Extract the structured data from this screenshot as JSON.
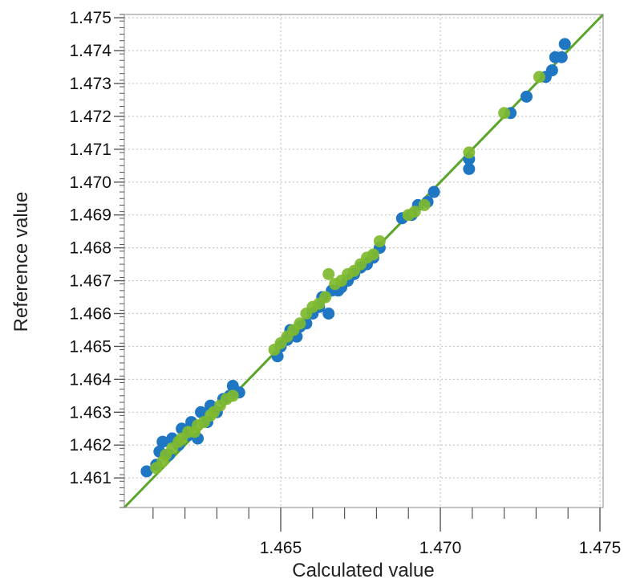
{
  "chart_data": {
    "type": "scatter",
    "title": "",
    "xlabel": "Calculated value",
    "ylabel": "Reference value",
    "xlim": [
      1.4601,
      1.4751
    ],
    "ylim": [
      1.4601,
      1.4751
    ],
    "x_ticks": [
      1.465,
      1.47,
      1.475
    ],
    "x_tick_labels": [
      "1.465",
      "1.470",
      "1.475"
    ],
    "x_minor_ticks": [
      1.461,
      1.462,
      1.463,
      1.464,
      1.466,
      1.467,
      1.468,
      1.469,
      1.471,
      1.472,
      1.473,
      1.474
    ],
    "y_ticks": [
      1.461,
      1.462,
      1.463,
      1.464,
      1.465,
      1.466,
      1.467,
      1.468,
      1.469,
      1.47,
      1.471,
      1.472,
      1.473,
      1.474,
      1.475
    ],
    "y_tick_labels": [
      "1.461",
      "1.462",
      "1.463",
      "1.464",
      "1.465",
      "1.466",
      "1.467",
      "1.468",
      "1.469",
      "1.470",
      "1.471",
      "1.472",
      "1.473",
      "1.474",
      "1.475"
    ],
    "grid": true,
    "legend": "none",
    "colors": {
      "series1": "#1f77c4",
      "series2": "#7fba2e",
      "fit_line": "#5aa52a",
      "grid": "#c8c8c8",
      "axis": "#555555"
    },
    "fit_line": {
      "x": [
        1.4601,
        1.4751
      ],
      "y": [
        1.4601,
        1.4751
      ]
    },
    "series": [
      {
        "color": "#1f77c4",
        "points": [
          [
            1.4608,
            1.4612
          ],
          [
            1.4611,
            1.4614
          ],
          [
            1.4612,
            1.4618
          ],
          [
            1.4613,
            1.4621
          ],
          [
            1.4615,
            1.4617
          ],
          [
            1.4616,
            1.4622
          ],
          [
            1.4618,
            1.462
          ],
          [
            1.4619,
            1.4625
          ],
          [
            1.4621,
            1.4623
          ],
          [
            1.4622,
            1.4627
          ],
          [
            1.4624,
            1.4622
          ],
          [
            1.4625,
            1.463
          ],
          [
            1.4627,
            1.4627
          ],
          [
            1.4628,
            1.4632
          ],
          [
            1.463,
            1.463
          ],
          [
            1.4632,
            1.4634
          ],
          [
            1.4634,
            1.4635
          ],
          [
            1.4635,
            1.4638
          ],
          [
            1.4637,
            1.4636
          ],
          [
            1.4649,
            1.4647
          ],
          [
            1.465,
            1.465
          ],
          [
            1.4652,
            1.4652
          ],
          [
            1.4653,
            1.4655
          ],
          [
            1.4655,
            1.4653
          ],
          [
            1.4656,
            1.4656
          ],
          [
            1.4658,
            1.4657
          ],
          [
            1.466,
            1.466
          ],
          [
            1.4662,
            1.4662
          ],
          [
            1.4663,
            1.4665
          ],
          [
            1.4665,
            1.466
          ],
          [
            1.4666,
            1.4667
          ],
          [
            1.4668,
            1.4667
          ],
          [
            1.4669,
            1.4668
          ],
          [
            1.4671,
            1.467
          ],
          [
            1.4673,
            1.4672
          ],
          [
            1.4675,
            1.4674
          ],
          [
            1.4677,
            1.4675
          ],
          [
            1.4679,
            1.4677
          ],
          [
            1.4681,
            1.468
          ],
          [
            1.4688,
            1.4689
          ],
          [
            1.4691,
            1.469
          ],
          [
            1.4693,
            1.4693
          ],
          [
            1.4696,
            1.4694
          ],
          [
            1.4698,
            1.4697
          ],
          [
            1.4709,
            1.4704
          ],
          [
            1.4709,
            1.4707
          ],
          [
            1.4722,
            1.4721
          ],
          [
            1.4727,
            1.4726
          ],
          [
            1.4733,
            1.4732
          ],
          [
            1.4735,
            1.4734
          ],
          [
            1.4736,
            1.4738
          ],
          [
            1.4738,
            1.4738
          ],
          [
            1.4739,
            1.4742
          ]
        ]
      },
      {
        "color": "#7fba2e",
        "points": [
          [
            1.4611,
            1.4613
          ],
          [
            1.4613,
            1.4615
          ],
          [
            1.4614,
            1.4617
          ],
          [
            1.4616,
            1.4619
          ],
          [
            1.4618,
            1.4621
          ],
          [
            1.4619,
            1.4622
          ],
          [
            1.4621,
            1.4624
          ],
          [
            1.4623,
            1.4624
          ],
          [
            1.4624,
            1.4626
          ],
          [
            1.4626,
            1.4627
          ],
          [
            1.4628,
            1.4629
          ],
          [
            1.4629,
            1.463
          ],
          [
            1.4631,
            1.4632
          ],
          [
            1.4633,
            1.4634
          ],
          [
            1.4635,
            1.4635
          ],
          [
            1.4648,
            1.4649
          ],
          [
            1.465,
            1.4651
          ],
          [
            1.4652,
            1.4653
          ],
          [
            1.4654,
            1.4655
          ],
          [
            1.4656,
            1.4657
          ],
          [
            1.4658,
            1.466
          ],
          [
            1.466,
            1.4662
          ],
          [
            1.4662,
            1.4663
          ],
          [
            1.4664,
            1.4665
          ],
          [
            1.4665,
            1.4672
          ],
          [
            1.4667,
            1.4669
          ],
          [
            1.4669,
            1.467
          ],
          [
            1.4671,
            1.4672
          ],
          [
            1.4673,
            1.4673
          ],
          [
            1.4675,
            1.4675
          ],
          [
            1.4677,
            1.4677
          ],
          [
            1.4679,
            1.4678
          ],
          [
            1.4681,
            1.4682
          ],
          [
            1.469,
            1.469
          ],
          [
            1.4692,
            1.4691
          ],
          [
            1.4695,
            1.4693
          ],
          [
            1.4709,
            1.4709
          ],
          [
            1.472,
            1.4721
          ],
          [
            1.4731,
            1.4732
          ]
        ]
      }
    ]
  }
}
